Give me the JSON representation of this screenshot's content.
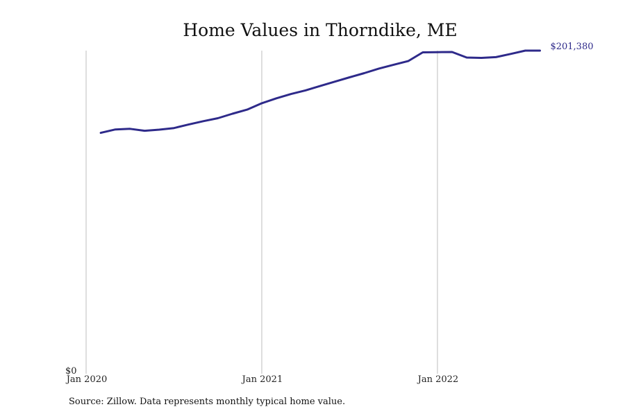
{
  "chart_data": {
    "type": "line",
    "title": "Home Values in Thorndike, ME",
    "xlabel": "",
    "ylabel": "",
    "x_ticks": [
      "Jan 2020",
      "Jan 2021",
      "Jan 2022"
    ],
    "y_ticks": [
      "$0"
    ],
    "ylim": [
      0,
      201380
    ],
    "grid": "vertical",
    "line_color": "#2e2a8a",
    "end_label": "$201,380",
    "series": [
      {
        "x": [
          "2020-02",
          "2020-03",
          "2020-04",
          "2020-05",
          "2020-06",
          "2020-07",
          "2020-08",
          "2020-09",
          "2020-10",
          "2020-11",
          "2020-12",
          "2021-01",
          "2021-02",
          "2021-03",
          "2021-04",
          "2021-05",
          "2021-06",
          "2021-07",
          "2021-08",
          "2021-09",
          "2021-10",
          "2021-11",
          "2021-12",
          "2022-01",
          "2022-02",
          "2022-03",
          "2022-04",
          "2022-05",
          "2022-06",
          "2022-07",
          "2022-08"
        ],
        "values": [
          149700,
          151800,
          152200,
          151000,
          151700,
          152700,
          154900,
          157000,
          158900,
          161700,
          164300,
          168300,
          171400,
          174100,
          176400,
          179200,
          181900,
          184600,
          187200,
          190100,
          192500,
          194800,
          200300,
          200400,
          200500,
          197000,
          196800,
          197300,
          199300,
          201400,
          201380
        ]
      }
    ]
  },
  "footer": {
    "source": "Source: Zillow. Data represents monthly typical home value."
  }
}
